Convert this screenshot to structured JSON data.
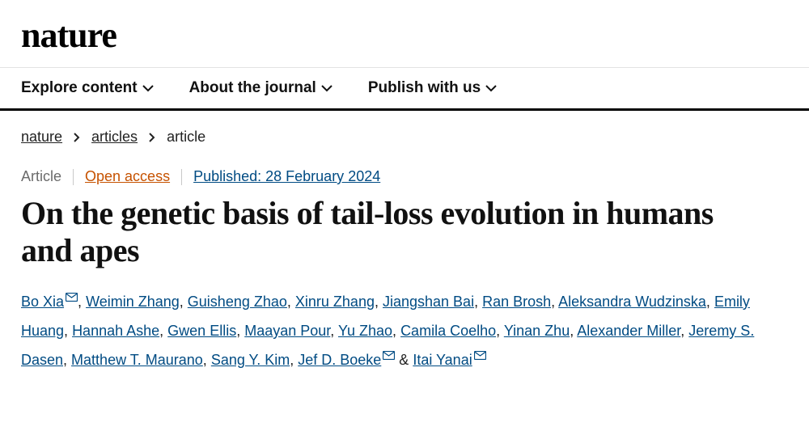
{
  "brand": {
    "logo_text": "nature"
  },
  "nav": {
    "items": [
      {
        "label": "Explore content"
      },
      {
        "label": "About the journal"
      },
      {
        "label": "Publish with us"
      }
    ]
  },
  "breadcrumb": {
    "root": "nature",
    "section": "articles",
    "current": "article"
  },
  "meta": {
    "type_label": "Article",
    "open_access_label": "Open access",
    "published_label": "Published: 28 February 2024"
  },
  "article": {
    "title": "On the genetic basis of tail-loss evolution in humans and apes"
  },
  "authors": [
    {
      "name": "Bo Xia",
      "corresponding": true
    },
    {
      "name": "Weimin Zhang"
    },
    {
      "name": "Guisheng Zhao"
    },
    {
      "name": "Xinru Zhang"
    },
    {
      "name": "Jiangshan Bai"
    },
    {
      "name": "Ran Brosh"
    },
    {
      "name": "Aleksandra Wudzinska"
    },
    {
      "name": "Emily Huang"
    },
    {
      "name": "Hannah Ashe"
    },
    {
      "name": "Gwen Ellis"
    },
    {
      "name": "Maayan Pour"
    },
    {
      "name": "Yu Zhao"
    },
    {
      "name": "Camila Coelho"
    },
    {
      "name": "Yinan Zhu"
    },
    {
      "name": "Alexander Miller"
    },
    {
      "name": "Jeremy S. Dasen"
    },
    {
      "name": "Matthew T. Maurano"
    },
    {
      "name": "Sang Y. Kim"
    },
    {
      "name": "Jef D. Boeke",
      "corresponding": true
    },
    {
      "name": "Itai Yanai",
      "corresponding": true
    }
  ],
  "colors": {
    "link": "#004b83",
    "open_access": "#c65200",
    "text": "#222222",
    "muted": "#6b6b6b",
    "rule": "#000000"
  }
}
